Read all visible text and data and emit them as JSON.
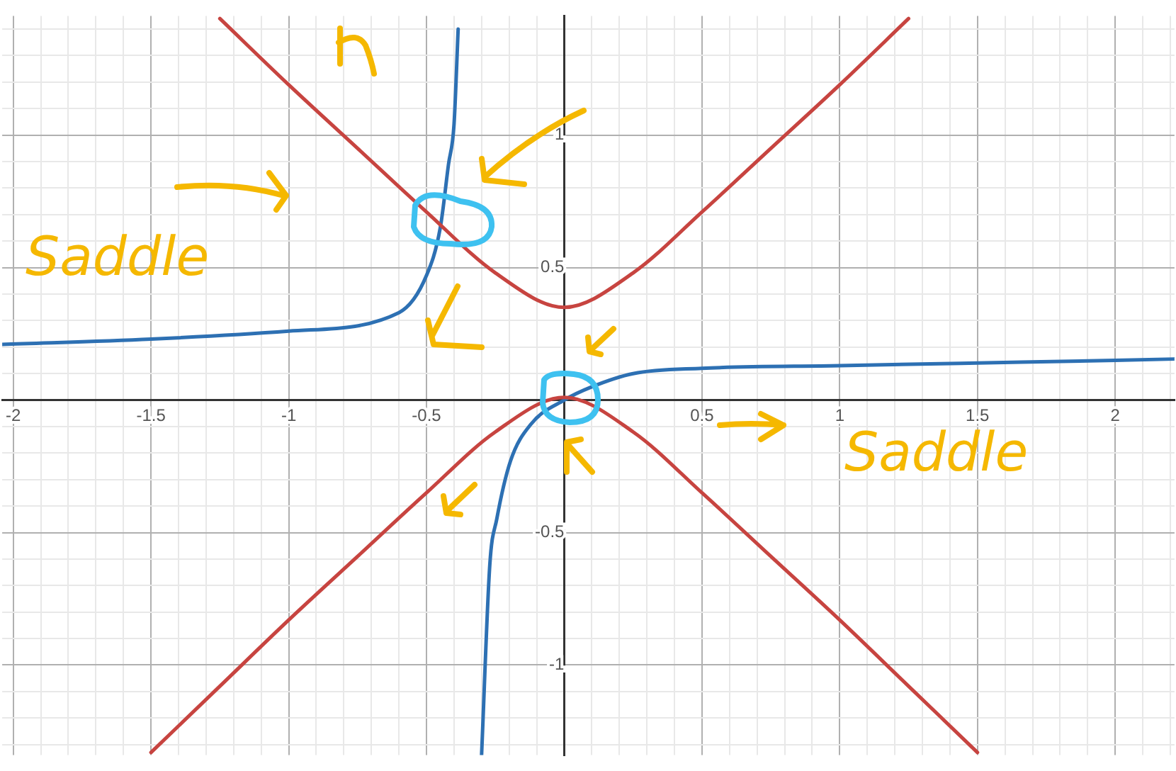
{
  "chart_data": {
    "type": "line",
    "annotations": [
      "Saddle",
      "Saddle"
    ],
    "xlim": [
      -2.04,
      2.215
    ],
    "ylim": [
      -1.34,
      1.45
    ],
    "xticks": [
      -2,
      {
        "value": -1.9,
        "label": null
      },
      {
        "value": -1.8,
        "label": null
      },
      {
        "value": -1.7,
        "label": null
      },
      {
        "value": -1.6,
        "label": null
      },
      -1.5,
      {
        "value": -1.4,
        "label": null
      },
      {
        "value": -1.3,
        "label": null
      },
      {
        "value": -1.2,
        "label": null
      },
      {
        "value": -1.1,
        "label": null
      },
      -1,
      {
        "value": -0.9,
        "label": null
      },
      {
        "value": -0.8,
        "label": null
      },
      {
        "value": -0.7,
        "label": null
      },
      {
        "value": -0.6,
        "label": null
      },
      -0.5,
      {
        "value": -0.4,
        "label": null
      },
      {
        "value": -0.3,
        "label": null
      },
      {
        "value": -0.2,
        "label": null
      },
      {
        "value": -0.1,
        "label": null
      },
      {
        "value": 0,
        "label": null
      },
      {
        "value": 0.1,
        "label": null
      },
      {
        "value": 0.2,
        "label": null
      },
      {
        "value": 0.3,
        "label": null
      },
      {
        "value": 0.4,
        "label": null
      },
      0.5,
      {
        "value": 0.6,
        "label": null
      },
      {
        "value": 0.7,
        "label": null
      },
      {
        "value": 0.8,
        "label": null
      },
      {
        "value": 0.9,
        "label": null
      },
      1,
      {
        "value": 1.1,
        "label": null
      },
      {
        "value": 1.2,
        "label": null
      },
      {
        "value": 1.3,
        "label": null
      },
      {
        "value": 1.4,
        "label": null
      },
      1.5,
      {
        "value": 1.6,
        "label": null
      },
      {
        "value": 1.7,
        "label": null
      },
      {
        "value": 1.8,
        "label": null
      },
      {
        "value": 1.9,
        "label": null
      },
      2,
      {
        "value": 2.1,
        "label": null
      },
      {
        "value": 2.2,
        "label": null
      }
    ],
    "yticks": [
      {
        "value": -1.3,
        "label": null
      },
      {
        "value": -1.2,
        "label": null
      },
      {
        "value": -1.1,
        "label": null
      },
      -1,
      {
        "value": -0.9,
        "label": null
      },
      {
        "value": -0.8,
        "label": null
      },
      {
        "value": -0.7,
        "label": null
      },
      {
        "value": -0.6,
        "label": null
      },
      -0.5,
      {
        "value": -0.4,
        "label": null
      },
      {
        "value": -0.3,
        "label": null
      },
      {
        "value": -0.2,
        "label": null
      },
      {
        "value": -0.1,
        "label": null
      },
      {
        "value": 0,
        "label": null
      },
      {
        "value": 0.1,
        "label": null
      },
      {
        "value": 0.2,
        "label": null
      },
      {
        "value": 0.3,
        "label": null
      },
      {
        "value": 0.4,
        "label": null
      },
      0.5,
      {
        "value": 0.6,
        "label": null
      },
      {
        "value": 0.7,
        "label": null
      },
      {
        "value": 0.8,
        "label": null
      },
      {
        "value": 0.9,
        "label": null
      },
      1,
      {
        "value": 1.1,
        "label": null
      },
      {
        "value": 1.2,
        "label": null
      },
      {
        "value": 1.3,
        "label": null
      },
      {
        "value": 1.4,
        "label": null
      }
    ],
    "grid": true,
    "legend": false,
    "marker": "none",
    "line_style": "solid",
    "series": [
      {
        "color": "#c74440",
        "x": [
          -1.25,
          -1,
          -0.75,
          -0.5,
          -0.25,
          0,
          0.25,
          0.5,
          0.75,
          1,
          1.25
        ],
        "values": [
          1.44,
          1.19,
          0.95,
          0.71,
          0.48,
          0.35,
          0.48,
          0.71,
          0.95,
          1.19,
          1.44
        ]
      },
      {
        "color": "#c74440",
        "x": [
          -1.5,
          -1.25,
          -1,
          -0.75,
          -0.5,
          -0.25,
          0,
          0.25,
          0.5,
          0.75,
          1,
          1.25,
          1.5
        ],
        "values": [
          -1.33,
          -1.08,
          -0.83,
          -0.59,
          -0.35,
          -0.12,
          0.01,
          -0.12,
          -0.35,
          -0.59,
          -0.83,
          -1.08,
          -1.33
        ]
      },
      {
        "color": "#2d70b3",
        "x": [
          -2.04,
          -1.5,
          -1,
          -0.6,
          -0.5,
          -0.45,
          -0.42,
          -0.4,
          -0.385
        ],
        "values": [
          0.21,
          0.23,
          0.26,
          0.33,
          0.47,
          0.65,
          0.89,
          1.04,
          1.4
        ]
      },
      {
        "color": "#2d70b3",
        "x": [
          -0.3,
          -0.27,
          -0.245,
          -0.195,
          -0.12,
          0,
          0.1,
          0.25,
          0.5,
          1,
          1.5,
          2,
          2.215
        ],
        "values": [
          -1.34,
          -0.62,
          -0.45,
          -0.23,
          -0.09,
          0,
          0.05,
          0.1,
          0.12,
          0.13,
          0.14,
          0.15,
          0.155
        ]
      }
    ]
  }
}
